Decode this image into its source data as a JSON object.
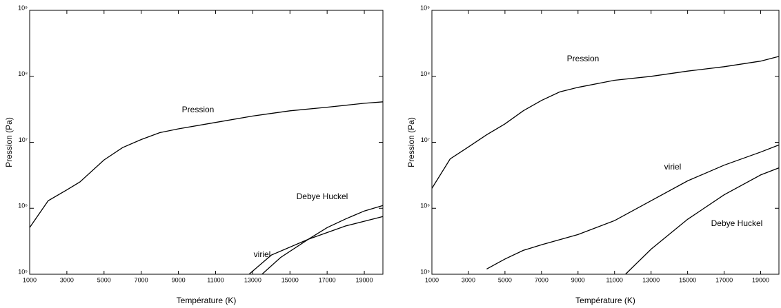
{
  "chart_data": [
    {
      "type": "line",
      "xlabel": "Température (K)",
      "ylabel": "Pression (Pa)",
      "log_y": true,
      "color": "#000000",
      "xlim": [
        1000,
        20000
      ],
      "xticks": [
        1000,
        3000,
        5000,
        7000,
        9000,
        11000,
        13000,
        15000,
        17000,
        19000
      ],
      "ylim": [
        100000,
        1000000000
      ],
      "yticks": [
        {
          "value": 100000,
          "label": "10⁵"
        },
        {
          "value": 1000000,
          "label": "10⁶"
        },
        {
          "value": 10000000,
          "label": "10⁷"
        },
        {
          "value": 100000000,
          "label": "10⁸"
        },
        {
          "value": 1000000000,
          "label": "10⁹"
        }
      ],
      "series": [
        {
          "name": "Pression",
          "x": [
            1000,
            2000,
            3000,
            3700,
            5000,
            6000,
            7000,
            8000,
            9000,
            11000,
            13000,
            15000,
            17000,
            19000,
            20000
          ],
          "values": [
            510000,
            1300000,
            1900000,
            2500000,
            5400000,
            8300000,
            11000000,
            14000000,
            16000000,
            20000000,
            25000000,
            30000000,
            34000000,
            39000000,
            41000000
          ]
        },
        {
          "name": "Debye Huckel",
          "x": [
            13500,
            14500,
            16000,
            17000,
            18000,
            19000,
            20000
          ],
          "values": [
            100000,
            180000,
            340000,
            510000,
            690000,
            910000,
            1100000
          ]
        },
        {
          "name": "viriel",
          "x": [
            12800,
            14000,
            16000,
            18000,
            20000
          ],
          "values": [
            100000,
            195000,
            340000,
            540000,
            750000
          ]
        }
      ]
    },
    {
      "type": "line",
      "xlabel": "Température (K)",
      "ylabel": "Pression (Pa)",
      "log_y": true,
      "color": "#000000",
      "xlim": [
        1000,
        20000
      ],
      "xticks": [
        1000,
        3000,
        5000,
        7000,
        9000,
        11000,
        13000,
        15000,
        17000,
        19000
      ],
      "ylim": [
        100000,
        1000000000
      ],
      "yticks": [
        {
          "value": 100000,
          "label": "10⁵"
        },
        {
          "value": 1000000,
          "label": "10⁶"
        },
        {
          "value": 10000000,
          "label": "10⁷"
        },
        {
          "value": 100000000,
          "label": "10⁸"
        },
        {
          "value": 1000000000,
          "label": "10⁹"
        }
      ],
      "series": [
        {
          "name": "Pression",
          "x": [
            1000,
            2000,
            3000,
            4000,
            5000,
            6000,
            7000,
            8000,
            9000,
            11000,
            13000,
            15000,
            17000,
            19000,
            20000
          ],
          "values": [
            2000000,
            5600000,
            8500000,
            13000000,
            19000000,
            30000000,
            43000000,
            58000000,
            68000000,
            87000000,
            100000000,
            120000000,
            140000000,
            170000000,
            200000000
          ]
        },
        {
          "name": "viriel",
          "x": [
            4000,
            5000,
            6000,
            7000,
            9000,
            11000,
            13000,
            15000,
            17000,
            19000,
            20000
          ],
          "values": [
            120000,
            170000,
            230000,
            280000,
            400000,
            650000,
            1300000,
            2600000,
            4500000,
            7100000,
            9100000
          ]
        },
        {
          "name": "Debye Huckel",
          "x": [
            11600,
            13000,
            15000,
            17000,
            19000,
            20000
          ],
          "values": [
            100000,
            240000,
            680000,
            1600000,
            3200000,
            4100000
          ]
        }
      ]
    }
  ]
}
